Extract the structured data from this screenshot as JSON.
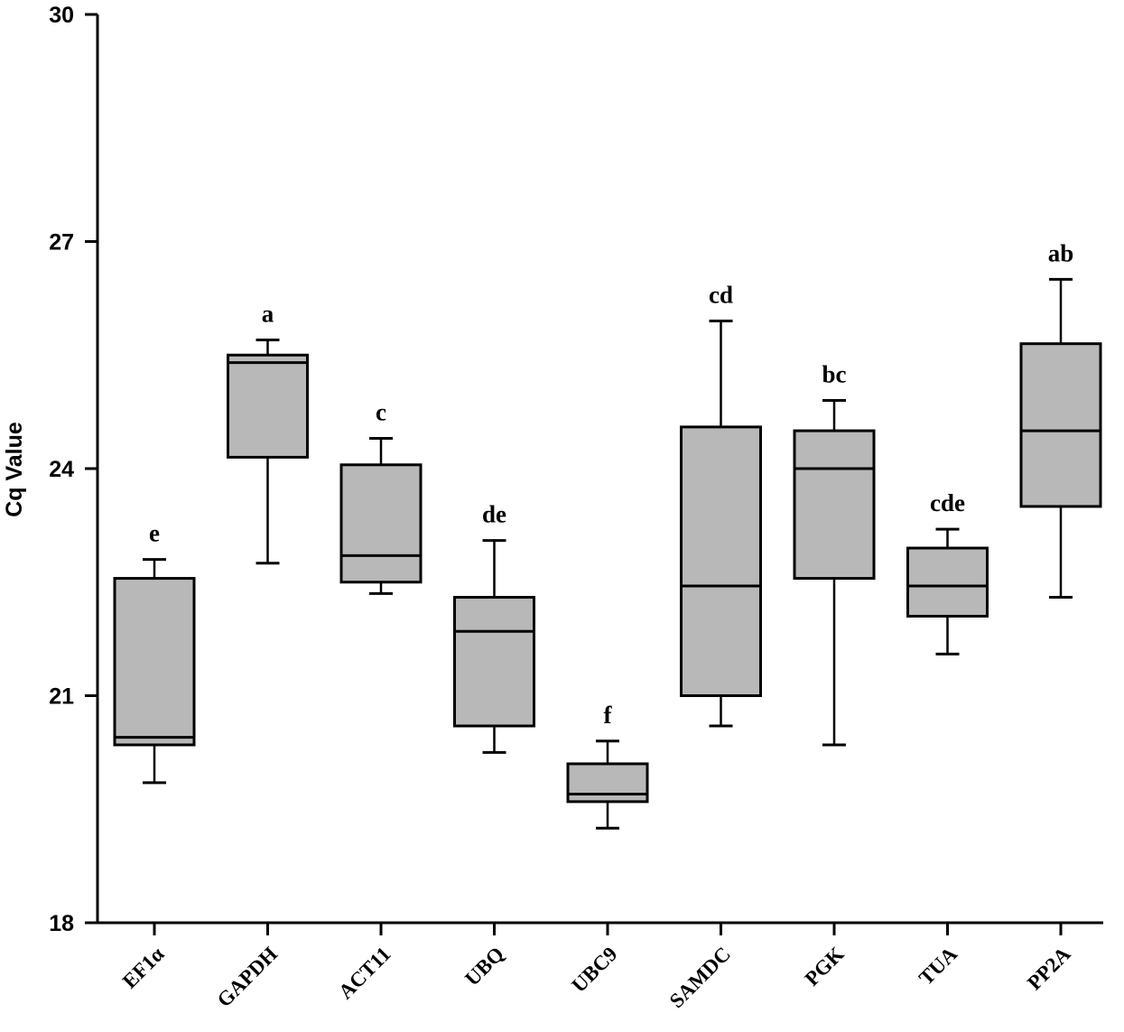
{
  "chart_data": {
    "type": "box",
    "title": "",
    "xlabel": "",
    "ylabel": "Cq Value",
    "ylim": [
      18,
      30
    ],
    "yticks": [
      18,
      21,
      24,
      27,
      30
    ],
    "categories": [
      "EF1α",
      "GAPDH",
      "ACT11",
      "UBQ",
      "UBC9",
      "SAMDC",
      "PGK",
      "TUA",
      "PP2A"
    ],
    "boxes": [
      {
        "name": "EF1α",
        "min": 19.85,
        "q1": 20.35,
        "median": 20.45,
        "q3": 22.55,
        "max": 22.8,
        "letter": "e"
      },
      {
        "name": "GAPDH",
        "min": 22.75,
        "q1": 24.15,
        "median": 25.4,
        "q3": 25.5,
        "max": 25.7,
        "letter": "a"
      },
      {
        "name": "ACT11",
        "min": 22.35,
        "q1": 22.5,
        "median": 22.85,
        "q3": 24.05,
        "max": 24.4,
        "letter": "c"
      },
      {
        "name": "UBQ",
        "min": 20.25,
        "q1": 20.6,
        "median": 21.85,
        "q3": 22.3,
        "max": 23.05,
        "letter": "de"
      },
      {
        "name": "UBC9",
        "min": 19.25,
        "q1": 19.6,
        "median": 19.7,
        "q3": 20.1,
        "max": 20.4,
        "letter": "f"
      },
      {
        "name": "SAMDC",
        "min": 20.6,
        "q1": 21.0,
        "median": 22.45,
        "q3": 24.55,
        "max": 25.95,
        "letter": "cd"
      },
      {
        "name": "PGK",
        "min": 20.35,
        "q1": 22.55,
        "median": 24.0,
        "q3": 24.5,
        "max": 24.9,
        "letter": "bc"
      },
      {
        "name": "TUA",
        "min": 21.55,
        "q1": 22.05,
        "median": 22.45,
        "q3": 22.95,
        "max": 23.2,
        "letter": "cde"
      },
      {
        "name": "PP2A",
        "min": 22.3,
        "q1": 23.5,
        "median": 24.5,
        "q3": 25.65,
        "max": 26.5,
        "letter": "ab"
      }
    ],
    "box_color": "#b8b8b8",
    "line_color": "#000000"
  }
}
